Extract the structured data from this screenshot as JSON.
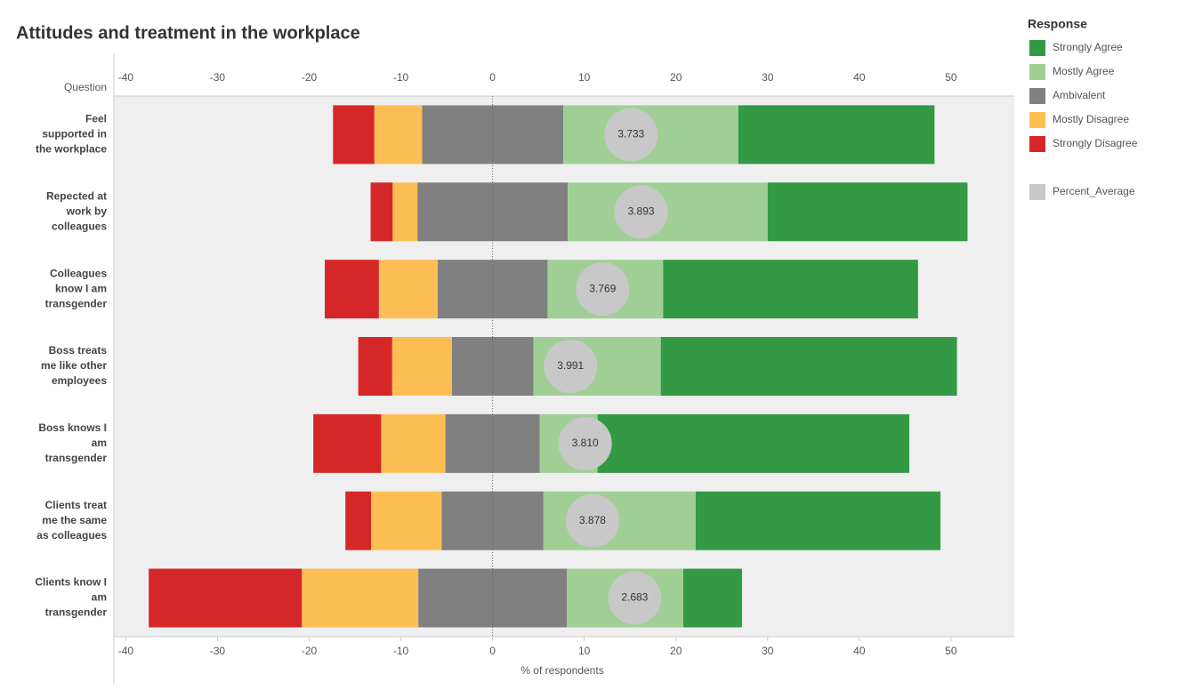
{
  "chart_data": {
    "type": "diverging-bar",
    "title": "Attitudes and treatment in the workplace",
    "y_axis_label": "Question",
    "x_axis_label": "% of respondents",
    "legend_title": "Response",
    "categories": [
      [
        "Feel",
        "supported in",
        "the workplace"
      ],
      [
        "Repected at",
        "work by",
        "colleagues"
      ],
      [
        "Colleagues",
        "know I am",
        "transgender"
      ],
      [
        "Boss treats",
        "me like other",
        "employees"
      ],
      [
        "Boss knows I",
        "am",
        "transgender"
      ],
      [
        "Clients treat",
        "me the same",
        "as colleagues"
      ],
      [
        "Clients know I",
        "am",
        "transgender"
      ]
    ],
    "series": [
      {
        "name": "Strongly Agree",
        "color": "#339944",
        "side": "right",
        "values": [
          21.4,
          21.8,
          27.8,
          32.3,
          34.0,
          26.7,
          6.4
        ]
      },
      {
        "name": "Mostly Agree",
        "color": "#a0cf96",
        "side": "right",
        "values": [
          19.1,
          21.8,
          12.6,
          13.9,
          6.3,
          16.6,
          12.7
        ]
      },
      {
        "name": "Ambivalent",
        "color": "#808080",
        "side": "center",
        "values": [
          15.4,
          16.4,
          12.0,
          8.9,
          10.3,
          11.1,
          16.2
        ]
      },
      {
        "name": "Mostly Disagree",
        "color": "#fdbf54",
        "side": "left",
        "values": [
          5.2,
          2.7,
          6.4,
          6.5,
          7.0,
          7.7,
          12.7
        ]
      },
      {
        "name": "Strongly Disagree",
        "color": "#d62728",
        "side": "left",
        "values": [
          4.5,
          2.4,
          5.9,
          3.7,
          7.4,
          2.8,
          16.7
        ]
      }
    ],
    "averages": {
      "name": "Percent_Average",
      "color": "#c8c8c8",
      "values": [
        3.733,
        3.893,
        3.769,
        3.991,
        3.81,
        3.878,
        2.683
      ],
      "value_labels": [
        "3.733",
        "3.893",
        "3.769",
        "3.991",
        "3.810",
        "3.878",
        "2.683"
      ],
      "x": [
        15.1,
        16.2,
        12.0,
        8.5,
        10.1,
        10.9,
        15.5
      ]
    },
    "xlim": [
      -41.3,
      56.9
    ],
    "xticks": [
      -40,
      -30,
      -20,
      -10,
      0,
      10,
      20,
      30,
      40,
      50
    ]
  }
}
